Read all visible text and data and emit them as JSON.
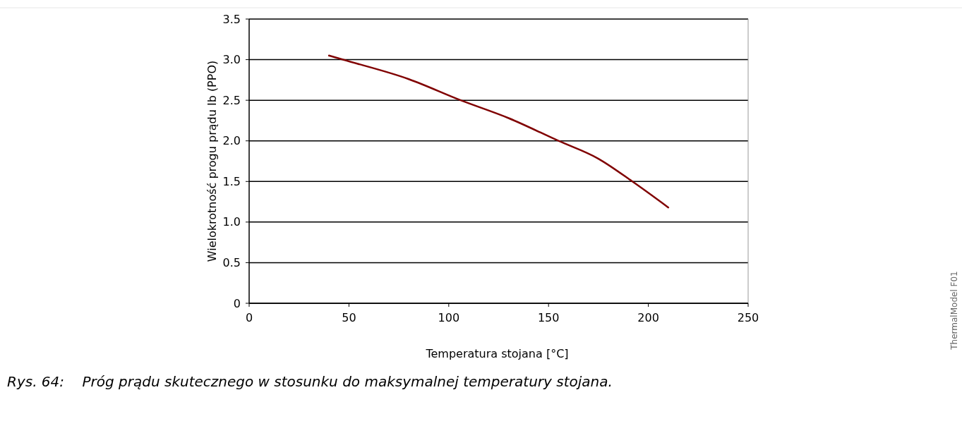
{
  "chart_data": {
    "type": "line",
    "xlabel": "Temperatura stojana  [°C]",
    "ylabel": "Wielokrotność progu prądu Ib (PPO)",
    "annotations": [
      "Rys. 64:    Próg prądu skutecznego w stosunku do maksymalnej temperatury stojana.",
      "ThermalModel F01"
    ],
    "x": [
      40,
      47,
      80,
      106,
      130,
      155,
      175,
      192,
      210
    ],
    "series": [
      {
        "color": "#800000",
        "values": [
          3.05,
          3.0,
          2.76,
          2.5,
          2.28,
          2.0,
          1.78,
          1.5,
          1.18
        ]
      }
    ],
    "xlim": [
      0,
      250
    ],
    "xticks": [
      0,
      50,
      100,
      150,
      200,
      250
    ],
    "ylim": [
      0,
      3.5
    ],
    "yticks": [
      0,
      {
        "value": 0.5,
        "label": "0.5"
      },
      {
        "value": 1,
        "label": "1.0"
      },
      {
        "value": 1.5,
        "label": "1.5"
      },
      {
        "value": 2,
        "label": "2.0"
      },
      {
        "value": 2.5,
        "label": "2.5"
      },
      {
        "value": 3,
        "label": "3.0"
      },
      {
        "value": 3.5,
        "label": "3.5"
      }
    ],
    "grid": "y",
    "marker": "none",
    "line_style": "solid"
  }
}
